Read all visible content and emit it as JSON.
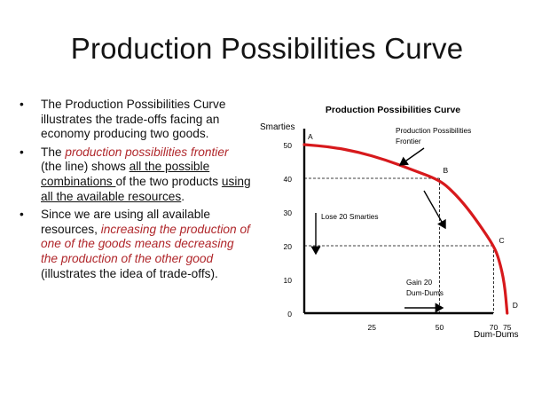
{
  "slide": {
    "title": "Production Possibilities Curve",
    "bullets": [
      {
        "marker": "•",
        "segments": [
          {
            "text": "The Production Possibilities Curve illustrates the trade-offs facing an economy producing two goods.",
            "style": "plain"
          }
        ]
      },
      {
        "marker": "•",
        "segments": [
          {
            "text": "The ",
            "style": "plain"
          },
          {
            "text": "production possibilities frontier",
            "style": "red"
          },
          {
            "text": " (the line) shows ",
            "style": "plain"
          },
          {
            "text": "all the possible combinations ",
            "style": "underline"
          },
          {
            "text": "of the two products ",
            "style": "plain"
          },
          {
            "text": "using all the available resources",
            "style": "underline"
          },
          {
            "text": ".",
            "style": "plain"
          }
        ]
      },
      {
        "marker": "•",
        "segments": [
          {
            "text": "Since we are using all available resources, ",
            "style": "plain"
          },
          {
            "text": "increasing the production of one of the goods means decreasing the production of the other good",
            "style": "red"
          },
          {
            "text": " (illustrates the idea of trade-offs).",
            "style": "plain"
          }
        ]
      }
    ]
  },
  "colors": {
    "curve": "#d7191c",
    "red_text": "#b0272b",
    "axis": "#000000"
  },
  "chart_data": {
    "type": "line",
    "title": "Production Possibilities Curve",
    "xlabel": "Dum-Dums",
    "ylabel": "Smarties",
    "xlim": [
      0,
      80
    ],
    "ylim": [
      0,
      55
    ],
    "x_ticks": [
      25,
      50,
      70,
      75
    ],
    "y_ticks": [
      0,
      10,
      20,
      30,
      40,
      50
    ],
    "grid": false,
    "series": [
      {
        "values": [
          {
            "x": 0,
            "y": 50
          },
          {
            "x": 10,
            "y": 49.3
          },
          {
            "x": 20,
            "y": 47.8
          },
          {
            "x": 30,
            "y": 45.5
          },
          {
            "x": 40,
            "y": 42.5
          },
          {
            "x": 50,
            "y": 39.5
          },
          {
            "x": 55,
            "y": 36
          },
          {
            "x": 60,
            "y": 31.5
          },
          {
            "x": 65,
            "y": 26
          },
          {
            "x": 70,
            "y": 20
          },
          {
            "x": 72,
            "y": 16
          },
          {
            "x": 74,
            "y": 9
          },
          {
            "x": 75,
            "y": 0
          }
        ]
      }
    ],
    "points": [
      {
        "label": "A",
        "x": 0,
        "y": 50
      },
      {
        "label": "B",
        "x": 50,
        "y": 40
      },
      {
        "label": "C",
        "x": 70,
        "y": 20
      },
      {
        "label": "D",
        "x": 75,
        "y": 0
      }
    ],
    "guides": [
      {
        "x": 50,
        "y": 40
      },
      {
        "x": 70,
        "y": 20
      }
    ],
    "annotations": [
      {
        "text_lines": [
          "Production Possibilities",
          "Frontier"
        ]
      },
      {
        "text_lines": [
          "Lose 20 Smarties"
        ]
      },
      {
        "text_lines": [
          "Gain 20",
          "Dum-Dums"
        ]
      }
    ]
  }
}
